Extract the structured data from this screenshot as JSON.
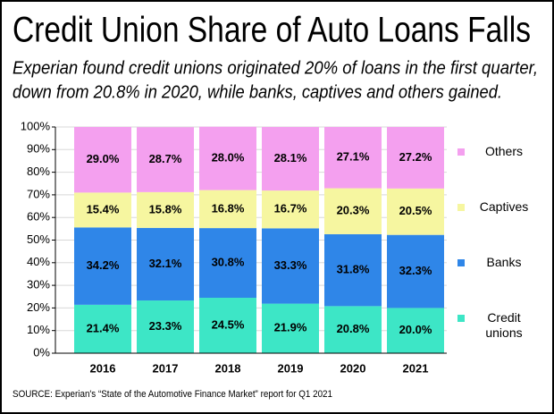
{
  "chart_data": {
    "type": "stacked_bar",
    "title": "Credit Union Share of Auto Loans Falls",
    "subtitle": [
      "Experian found credit unions originated 20% of loans in the first quarter,",
      "down from 20.8% in 2020, while banks, captives and others gained."
    ],
    "source": "SOURCE:  Experian's “State of the Automotive Finance Market” report for Q1 2021",
    "categories": [
      "2016",
      "2017",
      "2018",
      "2019",
      "2020",
      "2021"
    ],
    "series": [
      {
        "name": "Credit unions",
        "color": "#3de6c6",
        "values": [
          21.4,
          23.3,
          24.5,
          21.9,
          20.8,
          20.0
        ],
        "value_labels": [
          "21.4%",
          "23.3%",
          "24.5%",
          "21.9%",
          "20.8%",
          "20.0%"
        ]
      },
      {
        "name": "Banks",
        "color": "#2f86e8",
        "values": [
          34.2,
          32.1,
          30.8,
          33.3,
          31.8,
          32.3
        ],
        "value_labels": [
          "34.2%",
          "32.1%",
          "30.8%",
          "33.3%",
          "31.8%",
          "32.3%"
        ]
      },
      {
        "name": "Captives",
        "color": "#f6f6a0",
        "values": [
          15.4,
          15.8,
          16.8,
          16.7,
          20.3,
          20.5
        ],
        "value_labels": [
          "15.4%",
          "15.8%",
          "16.8%",
          "16.7%",
          "20.3%",
          "20.5%"
        ]
      },
      {
        "name": "Others",
        "color": "#f4a0ef",
        "values": [
          29.0,
          28.7,
          28.0,
          28.1,
          27.1,
          27.2
        ],
        "value_labels": [
          "29.0%",
          "28.7%",
          "28.0%",
          "28.1%",
          "27.1%",
          "27.2%"
        ]
      }
    ],
    "ylim": [
      0,
      100
    ],
    "yticks": [
      {
        "value": 0,
        "label": "0%"
      },
      {
        "value": 10,
        "label": "10%"
      },
      {
        "value": 20,
        "label": "20%"
      },
      {
        "value": 30,
        "label": "30%"
      },
      {
        "value": 40,
        "label": "40%"
      },
      {
        "value": 50,
        "label": "50%"
      },
      {
        "value": 60,
        "label": "60%"
      },
      {
        "value": 70,
        "label": "70%"
      },
      {
        "value": 80,
        "label": "80%"
      },
      {
        "value": 90,
        "label": "90%"
      },
      {
        "value": 100,
        "label": "100%"
      }
    ],
    "grid": true,
    "legend": "right"
  }
}
